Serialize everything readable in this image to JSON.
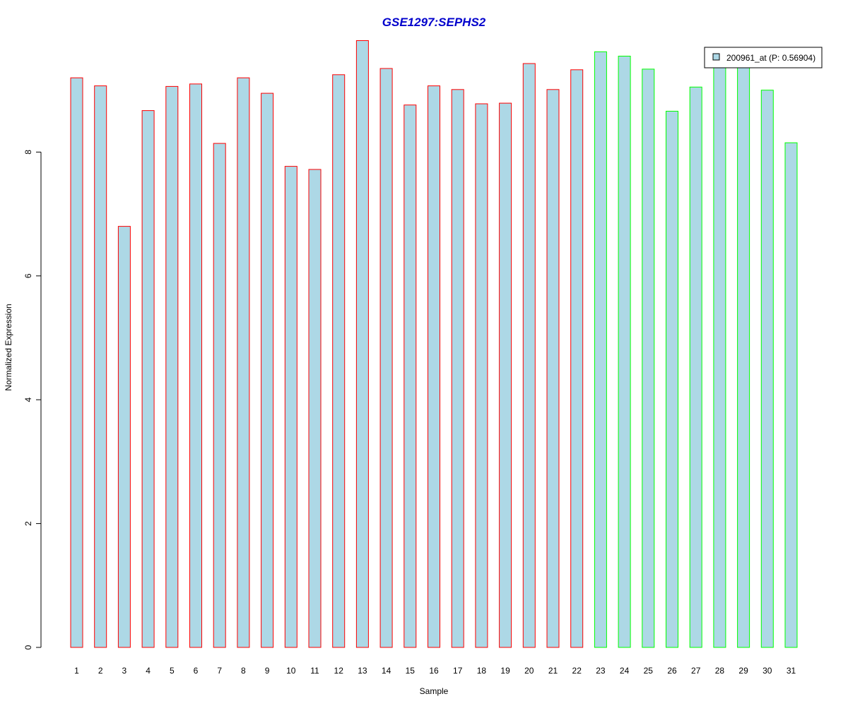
{
  "chart_data": {
    "type": "bar",
    "title": "GSE1297:SEPHS2",
    "xlabel": "Sample",
    "ylabel": "Normalized Expression",
    "ylim": [
      0,
      10
    ],
    "yticks": [
      "0",
      "2",
      "4",
      "6",
      "8"
    ],
    "categories": [
      "1",
      "2",
      "3",
      "4",
      "5",
      "6",
      "7",
      "8",
      "9",
      "10",
      "11",
      "12",
      "13",
      "14",
      "15",
      "16",
      "17",
      "18",
      "19",
      "20",
      "21",
      "22",
      "23",
      "24",
      "25",
      "26",
      "27",
      "28",
      "29",
      "30",
      "31"
    ],
    "values": [
      9.2,
      9.07,
      6.8,
      8.67,
      9.06,
      9.1,
      8.14,
      9.2,
      8.95,
      7.77,
      7.72,
      9.25,
      9.8,
      9.35,
      8.76,
      9.07,
      9.01,
      8.78,
      8.79,
      9.43,
      9.01,
      9.33,
      9.62,
      9.55,
      9.34,
      8.66,
      9.05,
      9.4,
      9.4,
      9.0,
      8.15
    ],
    "groups": [
      "a",
      "a",
      "a",
      "a",
      "a",
      "a",
      "a",
      "a",
      "a",
      "a",
      "a",
      "a",
      "a",
      "a",
      "a",
      "a",
      "a",
      "a",
      "a",
      "a",
      "a",
      "a",
      "b",
      "b",
      "b",
      "b",
      "b",
      "b",
      "b",
      "b",
      "b"
    ],
    "legend": {
      "label": "200961_at (P: 0.56904)",
      "position": "top-right"
    },
    "grid": false,
    "colors": {
      "title": "#0000cc",
      "bar_fill": "#add8e6",
      "group_a_border": "#ff0000",
      "group_b_border": "#00ff00",
      "axis": "#000000"
    }
  }
}
